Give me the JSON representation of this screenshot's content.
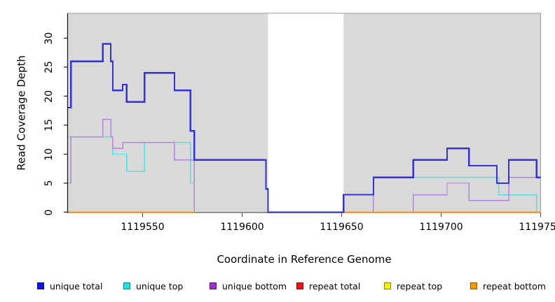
{
  "axes": {
    "x": {
      "title": "Coordinate in Reference Genome",
      "ticks": [
        "1119550",
        "1119600",
        "1119650",
        "1119700",
        "1119750"
      ]
    },
    "y": {
      "title": "Read Coverage Depth",
      "ticks": [
        "0",
        "5",
        "10",
        "15",
        "20",
        "25",
        "30"
      ]
    }
  },
  "legend": {
    "items": [
      {
        "label": "unique total",
        "color": "#0f0fe8"
      },
      {
        "label": "unique top",
        "color": "#1fe3e3"
      },
      {
        "label": "repeat total",
        "color": "#ee1111"
      },
      {
        "label": "unique bottom",
        "color": "#9c2fd1"
      },
      {
        "label": "repeat top",
        "color": "#f2f20a"
      },
      {
        "label": "repeat bottom",
        "color": "#f59b00"
      }
    ]
  },
  "chart_data": {
    "type": "line",
    "subtype": "step-coverage",
    "title": "",
    "xlabel": "Coordinate in Reference Genome",
    "ylabel": "Read Coverage Depth",
    "xlim": [
      1119512,
      1119750
    ],
    "ylim": [
      0,
      34
    ],
    "grid": false,
    "legend_position": "bottom",
    "x_ticks": [
      1119550,
      1119600,
      1119650,
      1119700,
      1119750
    ],
    "y_ticks": [
      0,
      5,
      10,
      15,
      20,
      25,
      30
    ],
    "plot_bg": "#d9d9d9",
    "coverage_regions": [
      [
        1119512,
        1119613
      ],
      [
        1119651,
        1119750
      ]
    ],
    "gap_region": [
      1119613,
      1119651
    ],
    "draw_order": [
      "unique_top",
      "repeat_total",
      "repeat_top",
      "unique_bottom",
      "repeat_bottom",
      "unique_total"
    ],
    "series": {
      "unique_total": {
        "label": "unique total",
        "color": "#3333d6",
        "width": 2.2,
        "segments": [
          {
            "steps": [
              [
                1119512,
                18
              ],
              [
                1119514,
                26
              ],
              [
                1119530,
                29
              ],
              [
                1119534,
                26
              ],
              [
                1119535,
                21
              ],
              [
                1119540,
                22
              ],
              [
                1119542,
                19
              ],
              [
                1119551,
                24
              ],
              [
                1119566,
                21
              ],
              [
                1119574,
                14
              ],
              [
                1119576,
                9
              ],
              [
                1119612,
                4
              ],
              [
                1119613,
                0
              ],
              [
                1119651,
                3
              ],
              [
                1119666,
                6
              ],
              [
                1119686,
                9
              ],
              [
                1119703,
                11
              ],
              [
                1119714,
                8
              ],
              [
                1119728,
                5
              ],
              [
                1119734,
                9
              ],
              [
                1119748,
                6
              ]
            ],
            "end": 1119750
          }
        ]
      },
      "unique_top": {
        "label": "unique top",
        "color": "#52e0e5",
        "width": 1.4,
        "segments": [
          {
            "steps": [
              [
                1119512,
                13
              ],
              [
                1119535,
                10
              ],
              [
                1119542,
                7
              ],
              [
                1119551,
                12
              ],
              [
                1119574,
                5
              ],
              [
                1119576,
                0
              ],
              [
                1119666,
                6
              ],
              [
                1119729,
                3
              ],
              [
                1119748,
                0
              ]
            ],
            "end": 1119750
          }
        ]
      },
      "unique_bottom": {
        "label": "unique bottom",
        "color": "#b184da",
        "width": 1.4,
        "segments": [
          {
            "steps": [
              [
                1119512,
                5
              ],
              [
                1119514,
                13
              ],
              [
                1119530,
                16
              ],
              [
                1119534,
                13
              ],
              [
                1119535,
                11
              ],
              [
                1119540,
                12
              ],
              [
                1119566,
                9
              ],
              [
                1119576,
                0
              ]
            ],
            "end": 1119576
          },
          {
            "steps": [
              [
                1119651,
                3
              ],
              [
                1119666,
                0
              ],
              [
                1119686,
                3
              ],
              [
                1119703,
                5
              ],
              [
                1119714,
                2
              ],
              [
                1119734,
                6
              ]
            ],
            "end": 1119750
          }
        ]
      },
      "repeat_total": {
        "label": "repeat total",
        "color": "#d66274",
        "width": 1.4,
        "segments": [
          {
            "steps": [
              [
                1119512,
                0
              ]
            ],
            "end": 1119750
          }
        ]
      },
      "repeat_top": {
        "label": "repeat top",
        "color": "#f2f20a",
        "width": 1.4,
        "segments": [
          {
            "steps": [
              [
                1119512,
                0
              ]
            ],
            "end": 1119576
          },
          {
            "steps": [
              [
                1119651,
                0
              ]
            ],
            "end": 1119750
          }
        ]
      },
      "repeat_bottom": {
        "label": "repeat bottom",
        "color": "#ff9e17",
        "width": 1.7,
        "segments": [
          {
            "steps": [
              [
                1119512,
                0
              ]
            ],
            "end": 1119576
          },
          {
            "steps": [
              [
                1119651,
                0
              ]
            ],
            "end": 1119750
          }
        ]
      }
    }
  }
}
